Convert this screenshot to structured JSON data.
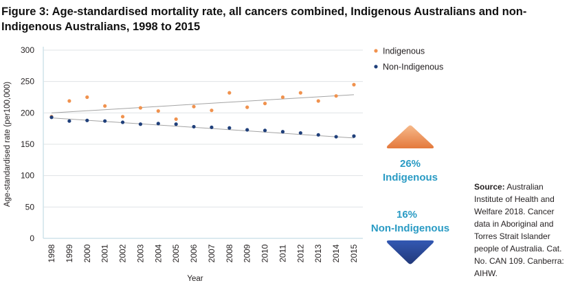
{
  "title": "Figure 3: Age-standardised mortality rate, all cancers combined, Indigenous Australians and non-Indigenous Australians, 1998 to 2015",
  "source": {
    "label": "Source:",
    "text": "Australian Institute of Health and Welfare 2018. Cancer data in Aboriginal and Torres Strait Islander people of Australia. Cat. No. CAN 109. Canberra: AIHW."
  },
  "change_indicators": {
    "indigenous": {
      "percent": "26%",
      "label": "Indigenous",
      "direction": "up",
      "color": "#ee8f54"
    },
    "non_indigenous": {
      "percent": "16%",
      "label": "Non-Indigenous",
      "direction": "down",
      "color": "#2a4a9e"
    }
  },
  "colors": {
    "indigenous": "#f0924e",
    "non_indigenous": "#1f3f7a",
    "trend": "#a3a3a3",
    "grid": "#dfe3e6",
    "axis": "#cfe3ea",
    "accent_text": "#2a9bc4"
  },
  "chart_data": {
    "type": "scatter",
    "xlabel": "Year",
    "ylabel": "Age-standardised rate (per100,000)",
    "ylim": [
      0,
      300
    ],
    "yticks": [
      0,
      50,
      100,
      150,
      200,
      250,
      300
    ],
    "x": [
      1998,
      1999,
      2000,
      2001,
      2002,
      2003,
      2004,
      2005,
      2006,
      2007,
      2008,
      2009,
      2010,
      2011,
      2012,
      2013,
      2014,
      2015
    ],
    "grid": true,
    "legend_position": "top-right",
    "series": [
      {
        "name": "Indigenous",
        "values": [
          194,
          219,
          225,
          211,
          194,
          208,
          203,
          190,
          210,
          204,
          232,
          209,
          215,
          225,
          232,
          219,
          227,
          245
        ],
        "trend": [
          200,
          229
        ]
      },
      {
        "name": "Non-Indigenous",
        "values": [
          193,
          187,
          188,
          187,
          185,
          182,
          183,
          182,
          178,
          177,
          176,
          173,
          172,
          170,
          168,
          165,
          162,
          163
        ],
        "trend": [
          192,
          160
        ]
      }
    ]
  }
}
